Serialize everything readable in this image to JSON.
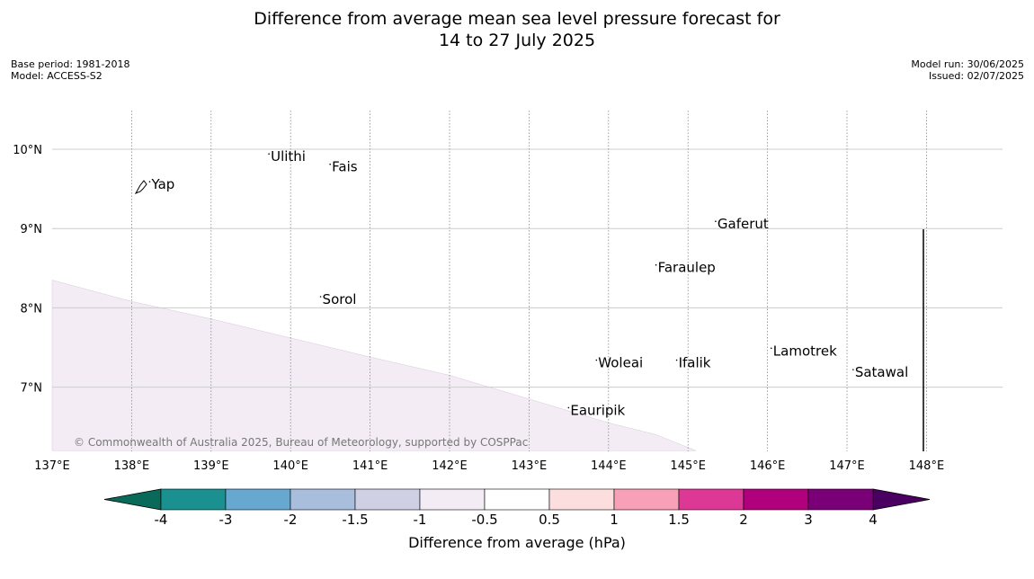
{
  "title": {
    "line1": "Difference from average mean sea level pressure forecast for",
    "line2": "14 to 27 July 2025"
  },
  "meta_left": {
    "base_period": "Base period: 1981-2018",
    "model": "Model: ACCESS-S2"
  },
  "meta_right": {
    "model_run": "Model run: 30/06/2025",
    "issued": "Issued: 02/07/2025"
  },
  "map": {
    "lon_range": [
      137,
      149
    ],
    "lat_range": [
      6.2,
      10.5
    ],
    "lon_ticks": [
      "137°E",
      "138°E",
      "139°E",
      "140°E",
      "141°E",
      "142°E",
      "143°E",
      "144°E",
      "145°E",
      "146°E",
      "147°E",
      "148°E"
    ],
    "lat_ticks": [
      "7°N",
      "8°N",
      "9°N",
      "10°N"
    ],
    "places": [
      {
        "name": "Ulithi",
        "lon": 139.75,
        "lat": 9.85
      },
      {
        "name": "Fais",
        "lon": 140.52,
        "lat": 9.72
      },
      {
        "name": "Yap",
        "lon": 138.25,
        "lat": 9.5
      },
      {
        "name": "Gaferut",
        "lon": 145.37,
        "lat": 9.0
      },
      {
        "name": "Faraulep",
        "lon": 144.62,
        "lat": 8.45
      },
      {
        "name": "Sorol",
        "lon": 140.4,
        "lat": 8.05
      },
      {
        "name": "Lamotrek",
        "lon": 146.07,
        "lat": 7.4
      },
      {
        "name": "Woleai",
        "lon": 143.87,
        "lat": 7.25
      },
      {
        "name": "Ifalik",
        "lon": 144.88,
        "lat": 7.25
      },
      {
        "name": "Satawal",
        "lon": 147.1,
        "lat": 7.13
      },
      {
        "name": "Eauripik",
        "lon": 143.52,
        "lat": 6.65
      }
    ],
    "shaded_region_color": "#f3ecf5",
    "copyright": "© Commonwealth of Australia 2025, Bureau of Meteorology, supported by COSPPac"
  },
  "colorbar": {
    "label": "Difference from average (hPa)",
    "tick_labels": [
      "-4",
      "-3",
      "-2",
      "-1.5",
      "-1",
      "-0.5",
      "0.5",
      "1",
      "1.5",
      "2",
      "3",
      "4"
    ],
    "under_color": "#0a6a5a",
    "over_color": "#4a0060",
    "colors": [
      "#1a9090",
      "#66a8d0",
      "#a8bedc",
      "#d0d0e4",
      "#f3ecf5",
      "#ffffff",
      "#fddede",
      "#f8a0b8",
      "#de3896",
      "#b0007e",
      "#7a0078"
    ]
  }
}
